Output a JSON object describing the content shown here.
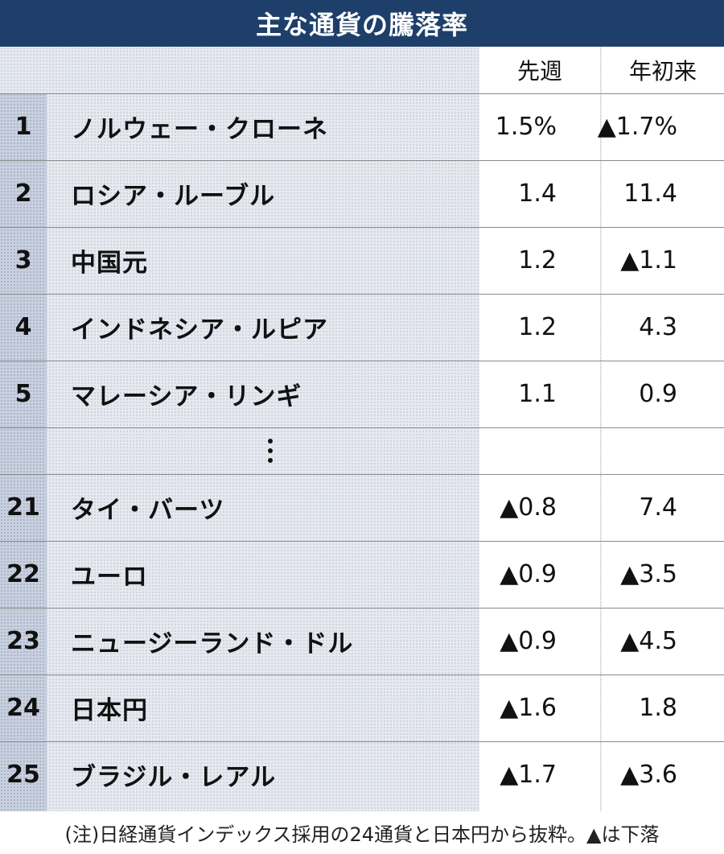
{
  "title": "主な通貨の騰落率",
  "chart_data": {
    "type": "table",
    "title": "主な通貨の騰落率",
    "columns": [
      "先週",
      "年初来"
    ],
    "rows": [
      {
        "rank": "1",
        "name": "ノルウェー・クローネ",
        "week": "1.5%",
        "ytd": "▲1.7%"
      },
      {
        "rank": "2",
        "name": "ロシア・ルーブル",
        "week": "1.4",
        "ytd": "11.4"
      },
      {
        "rank": "3",
        "name": "中国元",
        "week": "1.2",
        "ytd": "▲1.1"
      },
      {
        "rank": "4",
        "name": "インドネシア・ルピア",
        "week": "1.2",
        "ytd": "4.3"
      },
      {
        "rank": "5",
        "name": "マレーシア・リンギ",
        "week": "1.1",
        "ytd": "0.9"
      },
      {
        "rank": "21",
        "name": "タイ・バーツ",
        "week": "▲0.8",
        "ytd": "7.4"
      },
      {
        "rank": "22",
        "name": "ユーロ",
        "week": "▲0.9",
        "ytd": "▲3.5"
      },
      {
        "rank": "23",
        "name": "ニュージーランド・ドル",
        "week": "▲0.9",
        "ytd": "▲4.5"
      },
      {
        "rank": "24",
        "name": "日本円",
        "week": "▲1.6",
        "ytd": "1.8"
      },
      {
        "rank": "25",
        "name": "ブラジル・レアル",
        "week": "▲1.7",
        "ytd": "▲3.6"
      }
    ]
  },
  "note": "(注)日経通貨インデックス採用の24通貨と日本円から抜粋。▲は下落"
}
